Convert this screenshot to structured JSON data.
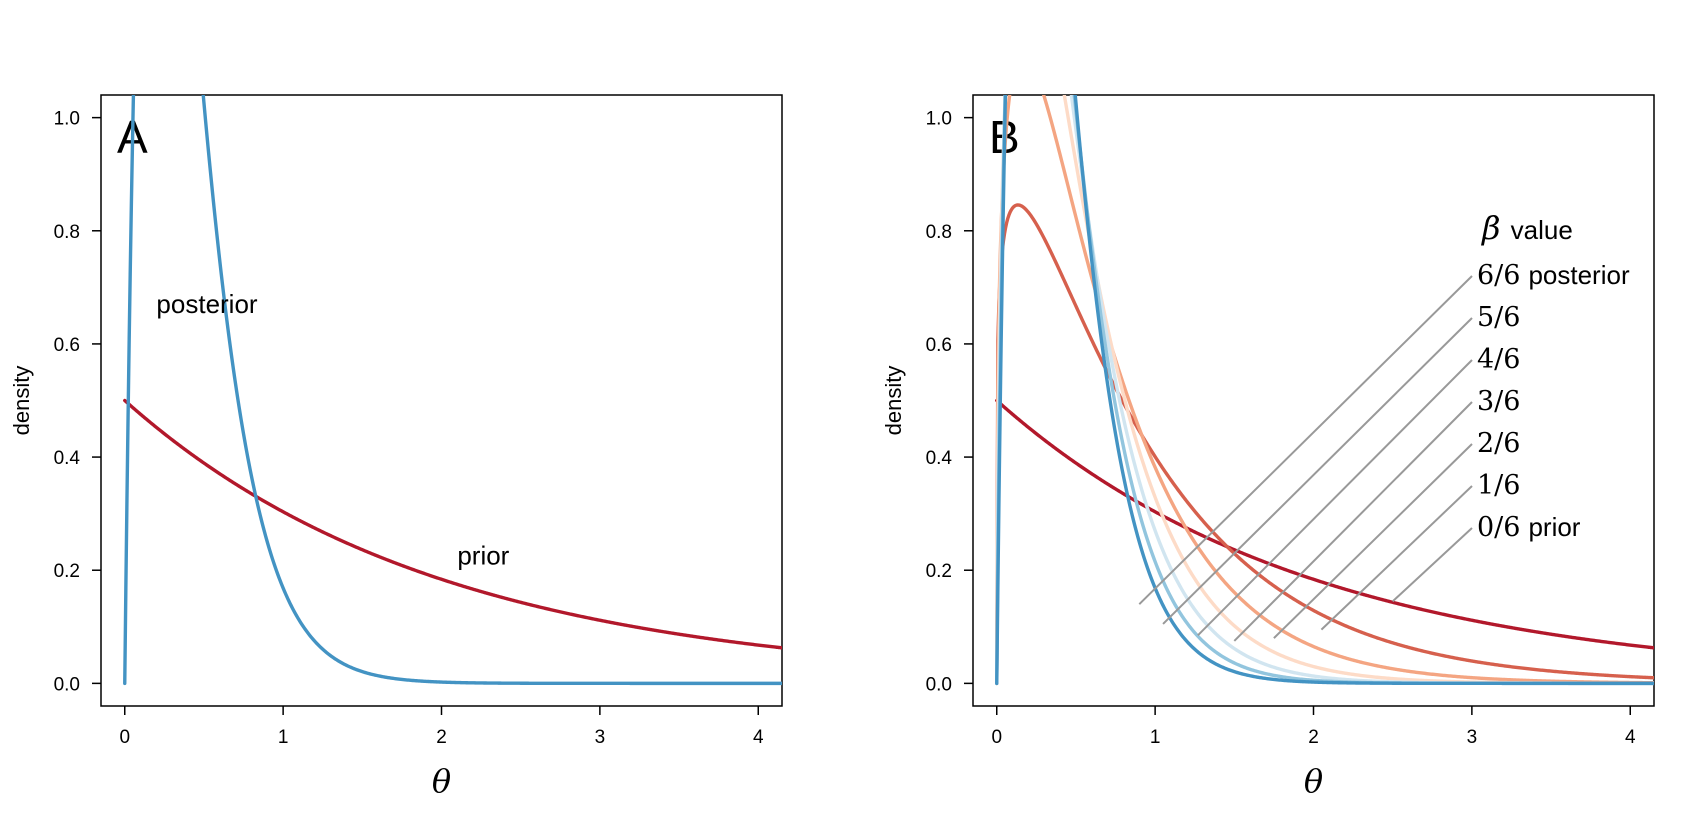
{
  "chart_data": [
    {
      "type": "line",
      "panel_label": "A",
      "xlabel": "θ",
      "ylabel": "density",
      "xlim": [
        -0.15,
        4.15
      ],
      "ylim": [
        -0.04,
        1.04
      ],
      "x_ticks": [
        0,
        1,
        2,
        3,
        4
      ],
      "y_ticks": [
        "0.0",
        "0.2",
        "0.4",
        "0.6",
        "0.8",
        "1.0"
      ],
      "grid": false,
      "series": [
        {
          "name": "prior",
          "color": "#b2182b",
          "distribution": "gamma",
          "shape": 1.0,
          "rate": 0.5
        },
        {
          "name": "posterior",
          "color": "#4393c3",
          "distribution": "gamma",
          "shape": 2.0,
          "rate": 5.0
        }
      ],
      "annotations": [
        {
          "text": "posterior",
          "x": 0.2,
          "y": 0.655
        },
        {
          "text": "prior",
          "x": 2.1,
          "y": 0.21
        }
      ]
    },
    {
      "type": "line",
      "panel_label": "B",
      "xlabel": "θ",
      "ylabel": "density",
      "xlim": [
        -0.15,
        4.15
      ],
      "ylim": [
        -0.04,
        1.04
      ],
      "x_ticks": [
        0,
        1,
        2,
        3,
        4
      ],
      "y_ticks": [
        "0.0",
        "0.2",
        "0.4",
        "0.6",
        "0.8",
        "1.0"
      ],
      "grid": false,
      "legend": {
        "title_symbol": "β",
        "title_word": "value",
        "entries": [
          {
            "fraction": "6/6",
            "label": "posterior"
          },
          {
            "fraction": "5/6",
            "label": ""
          },
          {
            "fraction": "4/6",
            "label": ""
          },
          {
            "fraction": "3/6",
            "label": ""
          },
          {
            "fraction": "2/6",
            "label": ""
          },
          {
            "fraction": "1/6",
            "label": ""
          },
          {
            "fraction": "0/6",
            "label": "prior"
          }
        ]
      },
      "series": [
        {
          "name": "0/6",
          "color": "#b2182b",
          "distribution": "gamma",
          "shape": 1.0,
          "rate": 0.5
        },
        {
          "name": "1/6",
          "color": "#d6604d",
          "distribution": "gamma",
          "shape": 1.167,
          "rate": 1.25
        },
        {
          "name": "2/6",
          "color": "#f4a582",
          "distribution": "gamma",
          "shape": 1.333,
          "rate": 2.0
        },
        {
          "name": "3/6",
          "color": "#fddbc7",
          "distribution": "gamma",
          "shape": 1.5,
          "rate": 2.75
        },
        {
          "name": "4/6",
          "color": "#d1e5f0",
          "distribution": "gamma",
          "shape": 1.667,
          "rate": 3.5
        },
        {
          "name": "5/6",
          "color": "#92c5de",
          "distribution": "gamma",
          "shape": 1.833,
          "rate": 4.25
        },
        {
          "name": "6/6",
          "color": "#4393c3",
          "distribution": "gamma",
          "shape": 2.0,
          "rate": 5.0
        }
      ],
      "leader_lines": [
        {
          "entry": "6/6",
          "x": 0.9,
          "y": 0.14
        },
        {
          "entry": "5/6",
          "x": 1.05,
          "y": 0.105
        },
        {
          "entry": "4/6",
          "x": 1.27,
          "y": 0.085
        },
        {
          "entry": "3/6",
          "x": 1.5,
          "y": 0.075
        },
        {
          "entry": "2/6",
          "x": 1.75,
          "y": 0.08
        },
        {
          "entry": "1/6",
          "x": 2.05,
          "y": 0.095
        },
        {
          "entry": "0/6",
          "x": 2.5,
          "y": 0.145
        }
      ]
    }
  ],
  "colors": {
    "prior": "#b2182b",
    "posterior": "#4393c3",
    "leader": "#999999"
  }
}
